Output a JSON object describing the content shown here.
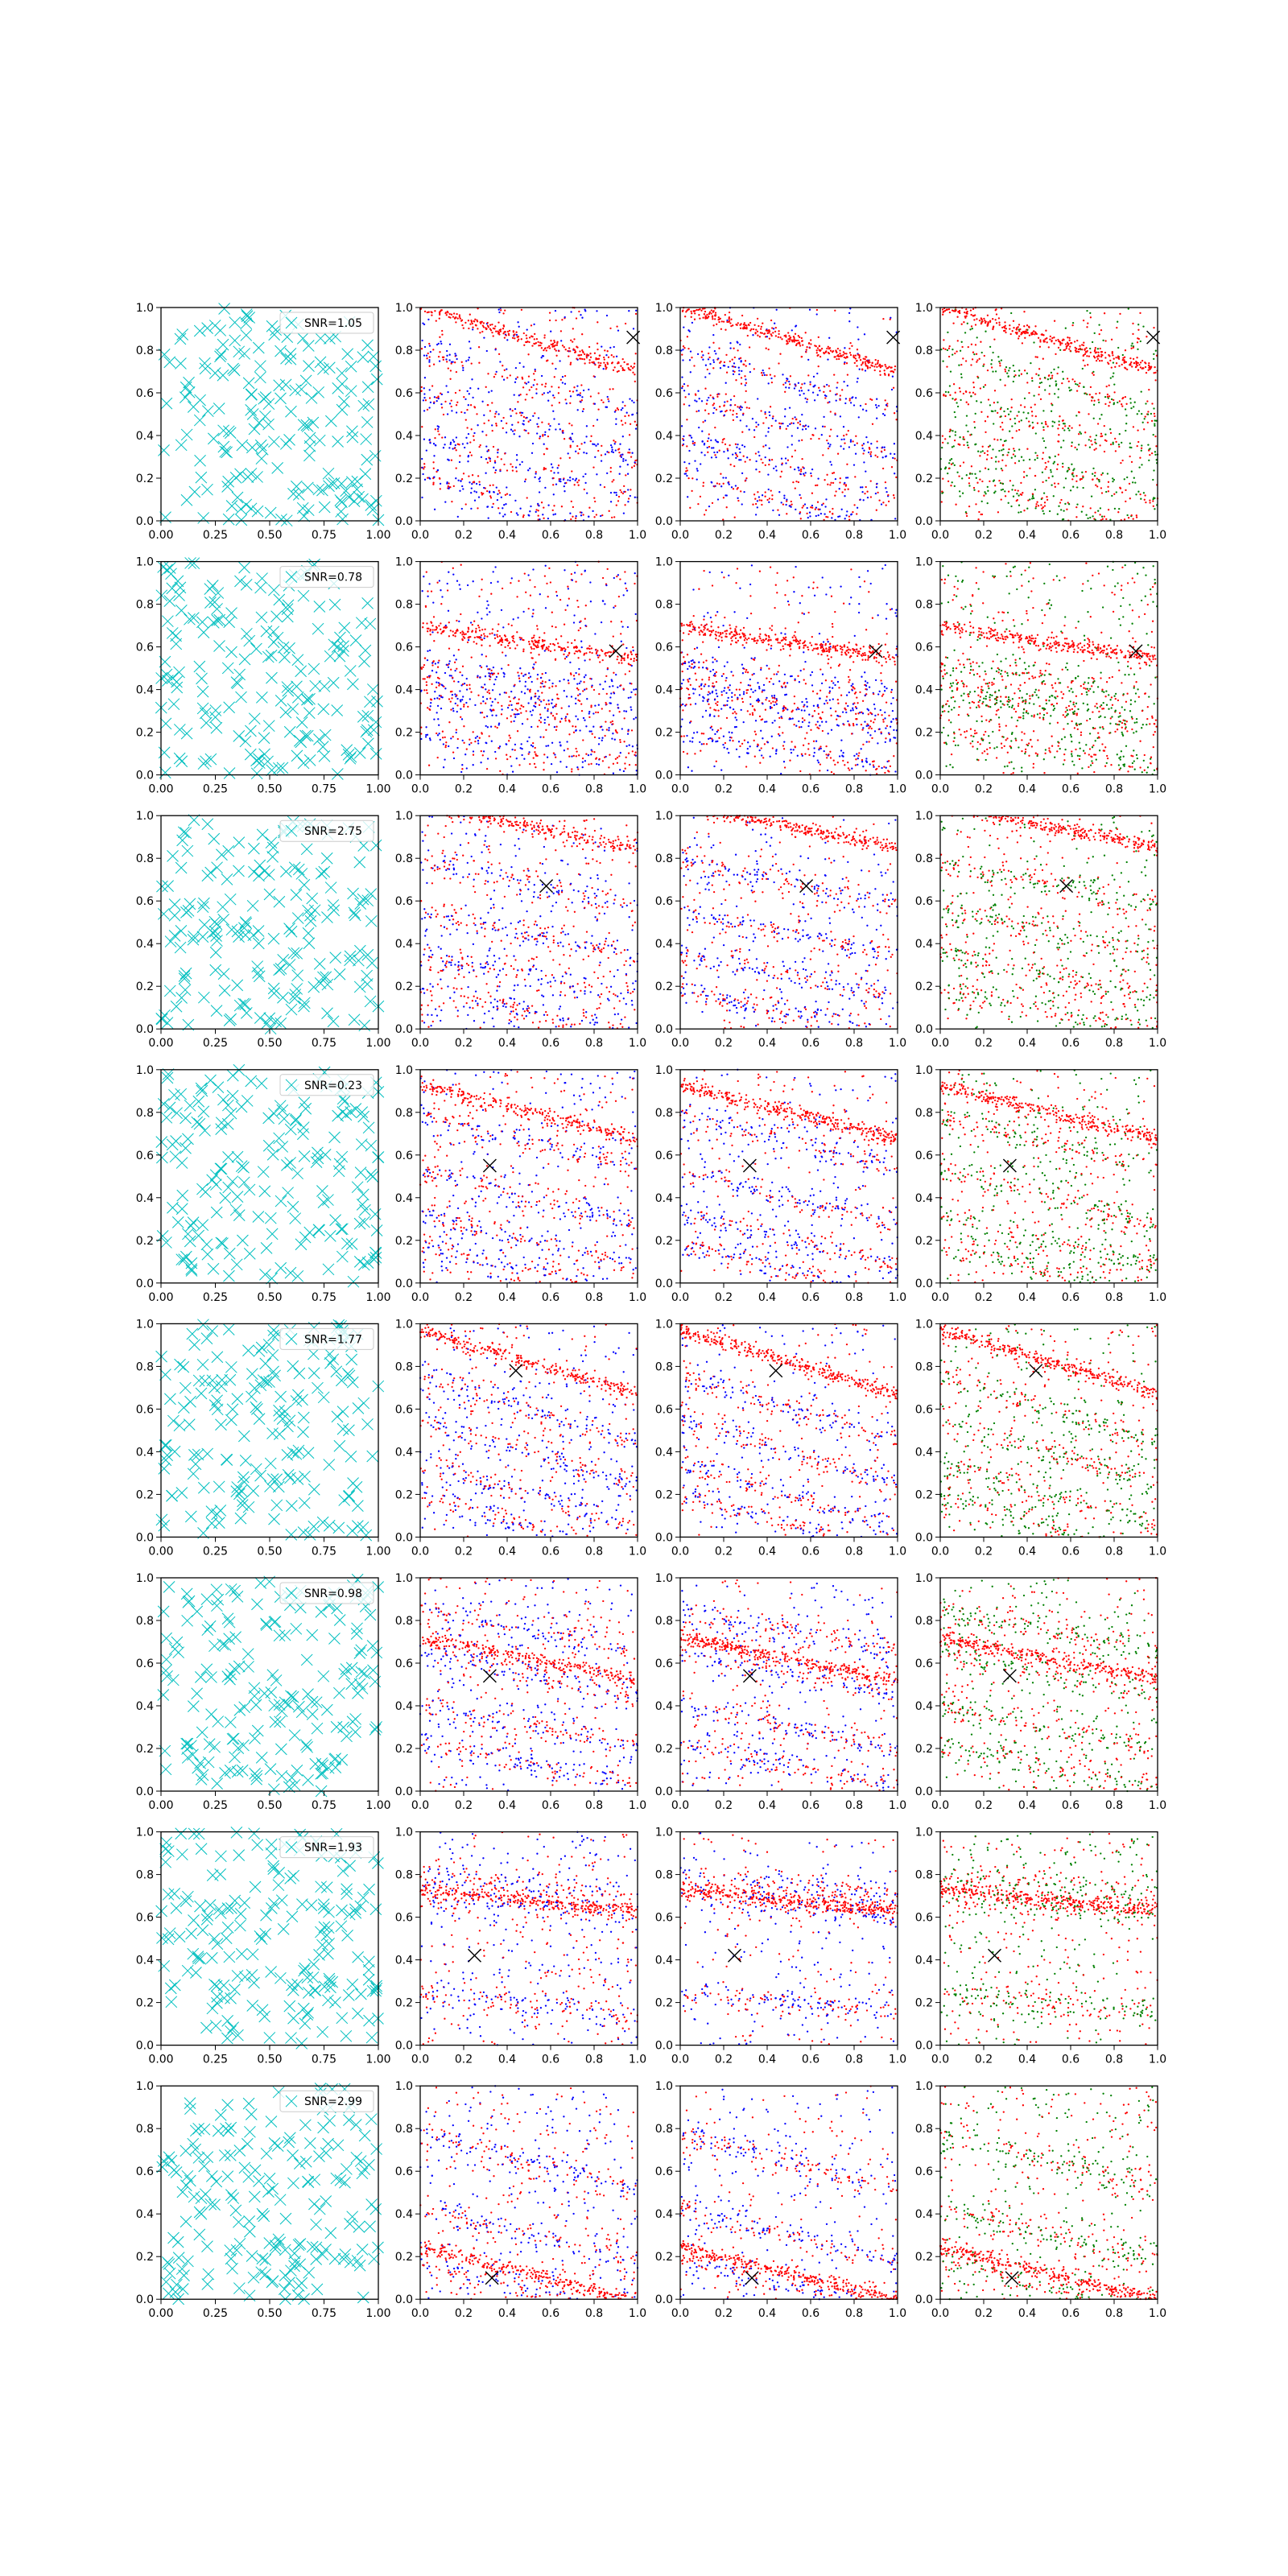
{
  "figure": {
    "columns": 4,
    "rows": 8,
    "colors": {
      "cyan": "#00bfbf",
      "red": "#ff0000",
      "blue": "#0000ff",
      "green": "#008000",
      "marker": "#000000",
      "axis": "#000000"
    }
  },
  "chart_data": {
    "type": "scatter",
    "grid": false,
    "col0_xticks": [
      "0.00",
      "0.25",
      "0.50",
      "0.75",
      "1.00"
    ],
    "col0_yticks": [
      "0.0",
      "0.2",
      "0.4",
      "0.6",
      "0.8",
      "1.0"
    ],
    "col_xticks": [
      "0.0",
      "0.2",
      "0.4",
      "0.6",
      "0.8",
      "1.0"
    ],
    "col_yticks": [
      "0.0",
      "0.2",
      "0.4",
      "0.6",
      "0.8",
      "1.0"
    ],
    "xlim": [
      0,
      1
    ],
    "ylim": [
      0,
      1
    ],
    "legend_location": "upper right",
    "rows": [
      {
        "snr_label": "SNR=1.05",
        "marker": [
          0.98,
          0.86
        ],
        "bands": [
          0.85,
          0.65,
          0.45,
          0.25,
          0.08
        ],
        "slope": -0.3
      },
      {
        "snr_label": "SNR=0.78",
        "marker": [
          0.9,
          0.58
        ],
        "bands": [
          0.62,
          0.35,
          0.12,
          0.28,
          0.45
        ],
        "slope": -0.15
      },
      {
        "snr_label": "SNR=2.75",
        "marker": [
          0.58,
          0.67
        ],
        "bands": [
          0.95,
          0.68,
          0.45,
          0.25,
          0.08
        ],
        "slope": -0.2
      },
      {
        "snr_label": "SNR=0.23",
        "marker": [
          0.32,
          0.55
        ],
        "bands": [
          0.8,
          0.66,
          0.4,
          0.2,
          0.05
        ],
        "slope": -0.25
      },
      {
        "snr_label": "SNR=1.77",
        "marker": [
          0.44,
          0.78
        ],
        "bands": [
          0.82,
          0.6,
          0.4,
          0.2,
          0.05
        ],
        "slope": -0.3
      },
      {
        "snr_label": "SNR=0.98",
        "marker": [
          0.32,
          0.54
        ],
        "bands": [
          0.62,
          0.55,
          0.3,
          0.12,
          0.75
        ],
        "slope": -0.2
      },
      {
        "snr_label": "SNR=1.93",
        "marker": [
          0.25,
          0.42
        ],
        "bands": [
          0.68,
          0.65,
          0.75,
          0.2
        ],
        "slope": -0.1
      },
      {
        "snr_label": "SNR=2.99",
        "marker": [
          0.33,
          0.1
        ],
        "bands": [
          0.12,
          0.05,
          0.3,
          0.65
        ],
        "slope": -0.25
      }
    ]
  }
}
